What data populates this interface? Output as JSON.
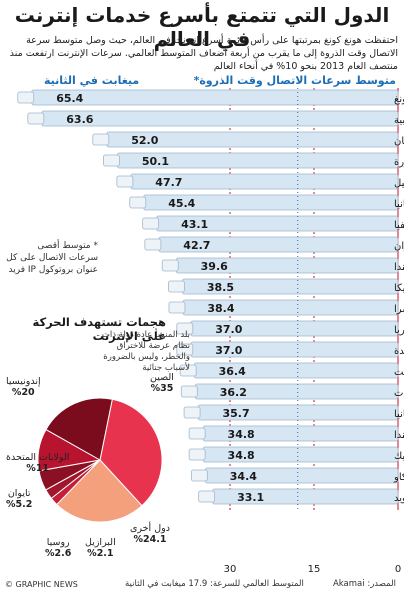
{
  "header": {
    "title": "الدول التي تتمتع بأسرع خدمات إنترنت في العالم",
    "intro": "احتفظت هونغ كونغ بمرتبتها على رأس قائمة أسرع إنترنت في العالم، حيث وصل متوسط سرعة الاتصال وقت الذروة إلى ما يقرب من أربعة أضعاف المتوسط العالمي. سرعات الإنترنت ارتفعت منذ منتصف العام 2013 بنحو 10% في أنحاء العالم"
  },
  "chart_data": [
    {
      "type": "bar",
      "title": "متوسط سرعات الاتصال وقت الذروة*",
      "unit_label": "ميغابت في الثانية",
      "categories": [
        "هونغ كونغ",
        "كوريا الجنوبية",
        "اليابان",
        "سنغافورة",
        "إسرائيل",
        "رومانيا",
        "لاتفيا",
        "تايوان",
        "هولندا",
        "بلجيكا",
        "سويسرا",
        "بلغاريا",
        "الولايات المتحدة",
        "الكويت",
        "الإمارات",
        "بريطانيا",
        "كندا",
        "جمهورية التشيك",
        "ماكاو",
        "السويد"
      ],
      "values": [
        65.4,
        63.6,
        52.0,
        50.1,
        47.7,
        45.4,
        43.1,
        42.7,
        39.6,
        38.5,
        38.4,
        37.0,
        37.0,
        36.4,
        36.2,
        35.7,
        34.8,
        34.8,
        34.4,
        33.1
      ],
      "value_labels": [
        "65.4",
        "63.6",
        "52.0",
        "50.1",
        "47.7",
        "45.4",
        "43.1",
        "42.7",
        "39.6",
        "38.5",
        "38.4",
        "37.0",
        "37.0",
        "36.4",
        "36.2",
        "35.7",
        "34.8",
        "34.8",
        "34.4",
        "33.1"
      ],
      "x_ticks": [
        "0",
        "15",
        "30"
      ],
      "global_average": 17.9,
      "colors": {
        "bar": "#d7e6f3",
        "highlight": "#c8102e",
        "text": "#1a1a1a"
      }
    },
    {
      "type": "pie",
      "title": "هجمات تستهدف الحركة على الإنترنت",
      "slices": [
        {
          "label": "الصين",
          "value": 35,
          "text": "%35",
          "color": "#e8334f"
        },
        {
          "label": "دول أخرى",
          "value": 24.1,
          "text": "%24.1",
          "color": "#f4a07c"
        },
        {
          "label": "البرازيل",
          "value": 2.1,
          "text": "%2.1",
          "color": "#c41e3a"
        },
        {
          "label": "روسيا",
          "value": 2.6,
          "text": "%2.6",
          "color": "#a0162d"
        },
        {
          "label": "تايوان",
          "value": 5.2,
          "text": "%5.2",
          "color": "#8b1024"
        },
        {
          "label": "الولايات المتحدة",
          "value": 11,
          "text": "%11",
          "color": "#b8142f"
        },
        {
          "label": "إندونيسيا",
          "value": 20,
          "text": "%20",
          "color": "#7a0c1d"
        }
      ]
    }
  ],
  "footnote": "* متوسط أقصى سرعات الاتصال على كل عنوان بروتوكول IP فريد",
  "threat_desc": "بلد المنشأ عادة دولة ذات نظام عرضة للاختراق والخطر، وليس بالضرورة لأسباب جنائية",
  "footer": {
    "source": "المصدر: Akamai",
    "average": "المتوسط العالمي للسرعة: 17.9 ميغابت في الثانية",
    "credit": "© GRAPHIC NEWS"
  }
}
